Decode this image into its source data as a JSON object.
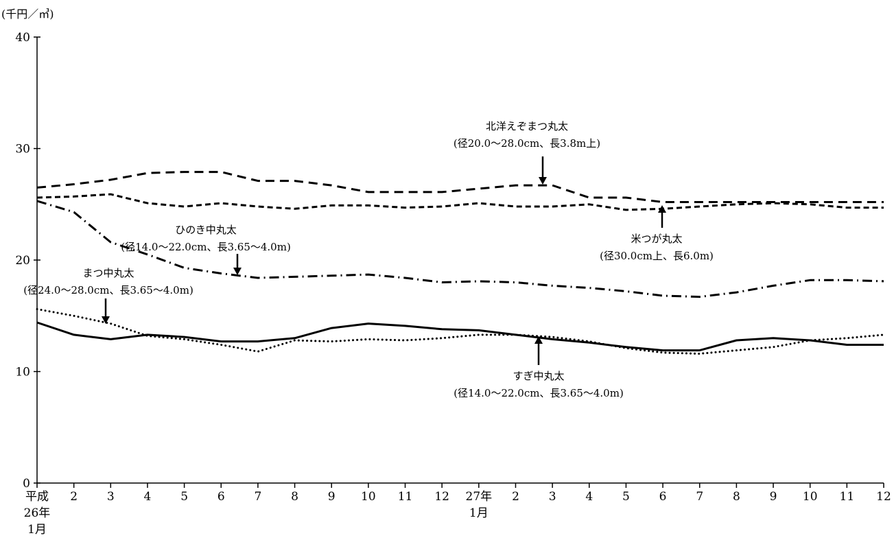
{
  "chart_data": {
    "type": "line",
    "unit_label": "(千円／㎥)",
    "ylim": [
      0,
      40
    ],
    "y_ticks": [
      "0",
      "10",
      "20",
      "30",
      "40"
    ],
    "x_tick_labels": [
      [
        "平成",
        "26年",
        "1月"
      ],
      [
        "2"
      ],
      [
        "3"
      ],
      [
        "4"
      ],
      [
        "5"
      ],
      [
        "6"
      ],
      [
        "7"
      ],
      [
        "8"
      ],
      [
        "9"
      ],
      [
        "10"
      ],
      [
        "11"
      ],
      [
        "12"
      ],
      [
        "27年",
        "1月"
      ],
      [
        "2"
      ],
      [
        "3"
      ],
      [
        "4"
      ],
      [
        "5"
      ],
      [
        "6"
      ],
      [
        "7"
      ],
      [
        "8"
      ],
      [
        "9"
      ],
      [
        "10"
      ],
      [
        "11"
      ],
      [
        "12"
      ]
    ],
    "grid": false,
    "series": [
      {
        "name": "すぎ中丸太",
        "spec": "(径14.0～22.0cm、長3.65～4.0m)",
        "style": "solid",
        "values": [
          14.4,
          13.3,
          12.9,
          13.3,
          13.1,
          12.7,
          12.7,
          13.0,
          13.9,
          14.3,
          14.1,
          13.8,
          13.7,
          13.3,
          12.9,
          12.6,
          12.2,
          11.9,
          11.9,
          12.8,
          13.0,
          12.8,
          12.4,
          12.4
        ]
      },
      {
        "name": "まつ中丸太",
        "spec": "(径24.0～28.0cm、長3.65～4.0m)",
        "style": "dotted",
        "values": [
          15.6,
          15.0,
          14.3,
          13.2,
          12.9,
          12.4,
          11.8,
          12.8,
          12.7,
          12.9,
          12.8,
          13.0,
          13.3,
          13.3,
          13.1,
          12.7,
          12.1,
          11.7,
          11.6,
          11.9,
          12.2,
          12.8,
          13.0,
          13.3
        ]
      },
      {
        "name": "ひのき中丸太",
        "spec": "(径14.0～22.0cm、長3.65～4.0m)",
        "style": "dashdot",
        "values": [
          25.3,
          24.3,
          21.6,
          20.5,
          19.3,
          18.8,
          18.4,
          18.5,
          18.6,
          18.7,
          18.4,
          18.0,
          18.1,
          18.0,
          17.7,
          17.5,
          17.2,
          16.8,
          16.7,
          17.1,
          17.7,
          18.2,
          18.2,
          18.1
        ]
      },
      {
        "name": "北洋えぞまつ丸太",
        "spec": "(径20.0～28.0cm、長3.8m上)",
        "style": "dashed",
        "values": [
          26.5,
          26.8,
          27.2,
          27.8,
          27.9,
          27.9,
          27.1,
          27.1,
          26.7,
          26.1,
          26.1,
          26.1,
          26.4,
          26.7,
          26.7,
          25.6,
          25.6,
          25.2,
          25.2,
          25.2,
          25.2,
          25.2,
          25.2,
          25.2
        ]
      },
      {
        "name": "米つが丸太",
        "spec": "(径30.0cm上、長6.0m)",
        "style": "short-dashed",
        "values": [
          25.6,
          25.7,
          25.9,
          25.1,
          24.8,
          25.1,
          24.8,
          24.6,
          24.9,
          24.9,
          24.7,
          24.8,
          25.1,
          24.8,
          24.8,
          25.0,
          24.5,
          24.6,
          24.8,
          25.0,
          25.1,
          25.0,
          24.7,
          24.7
        ]
      }
    ]
  }
}
